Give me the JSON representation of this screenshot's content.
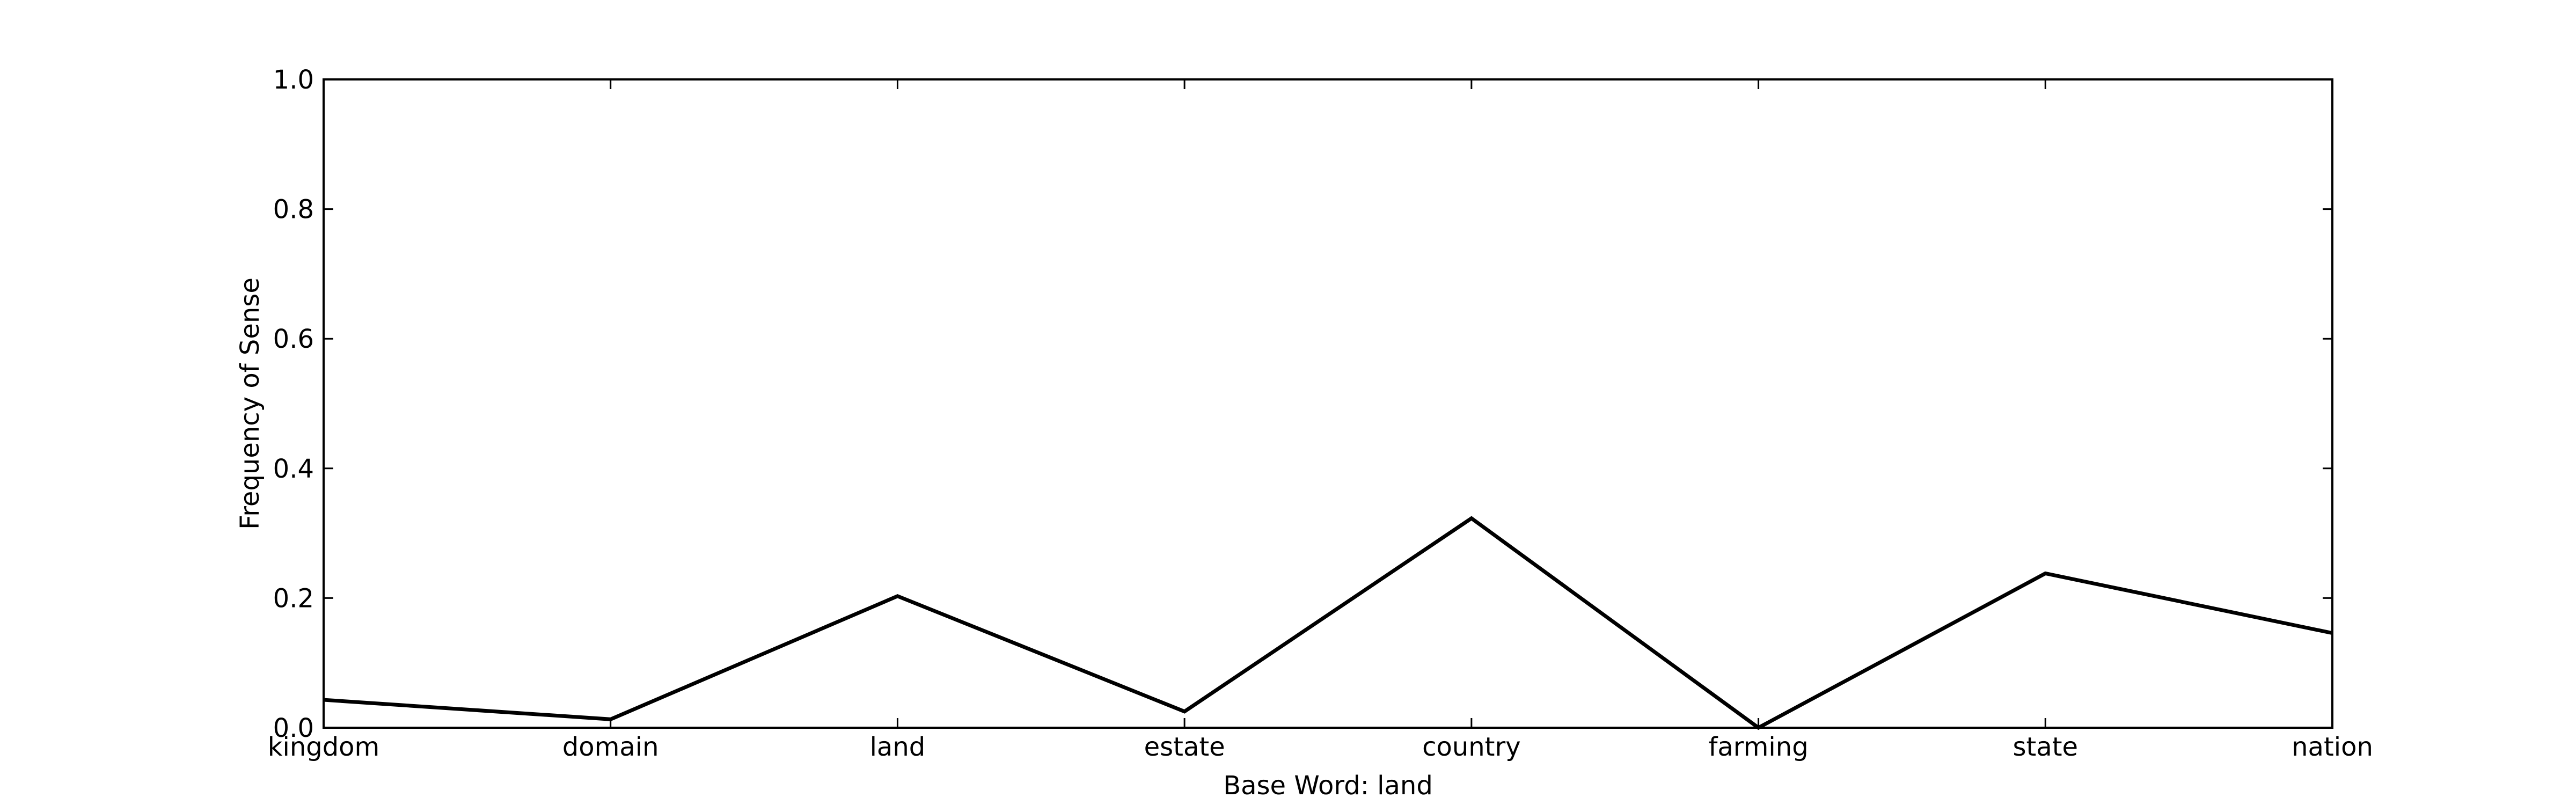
{
  "chart_data": {
    "type": "line",
    "categories": [
      "kingdom",
      "domain",
      "land",
      "estate",
      "country",
      "farming",
      "state",
      "nation"
    ],
    "series": [
      {
        "values": [
          0.043,
          0.013,
          0.203,
          0.025,
          0.323,
          0.0,
          0.238,
          0.146
        ],
        "color": "#000000"
      }
    ],
    "xlabel": "Base Word: land",
    "ylabel": "Frequency of Sense",
    "ylim": [
      0,
      1.0
    ],
    "yticks": [
      0.0,
      0.2,
      0.4,
      0.6,
      0.8,
      1.0
    ],
    "ytick_labels": [
      "0.0",
      "0.2",
      "0.4",
      "0.6",
      "0.8",
      "1.0"
    ],
    "grid": false,
    "legend": false
  }
}
